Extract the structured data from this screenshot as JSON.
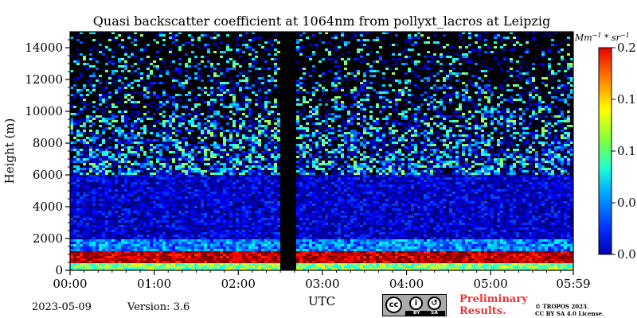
{
  "chart_data": {
    "type": "heatmap",
    "title": "Quasi backscatter coefficient at 1064nm from pollyxt_lacros at Leipzig",
    "xlabel": "UTC",
    "ylabel": "Height (m)",
    "x_ticks": [
      "00:00",
      "01:00",
      "02:00",
      "03:00",
      "04:00",
      "05:00",
      "05:59"
    ],
    "x_range_hours": [
      0,
      5.983
    ],
    "y_ticks": [
      0,
      2000,
      4000,
      6000,
      8000,
      10000,
      12000,
      14000
    ],
    "y_range": [
      0,
      15000
    ],
    "no_data_interval_hours": [
      2.5,
      2.67
    ],
    "colorbar": {
      "unit_label": "Mm^{-1} * sr^{-1}",
      "range": [
        0.0,
        0.2
      ],
      "tick_labels": [
        "0.0",
        "0.0",
        "0.1",
        "0.1",
        "0.2"
      ],
      "tick_values": [
        0.0,
        0.05,
        0.1,
        0.15,
        0.2
      ],
      "colormap": "jet"
    },
    "layers": [
      {
        "height_range": [
          0,
          400
        ],
        "level": 0.1
      },
      {
        "height_range": [
          400,
          1200
        ],
        "level": 0.19
      },
      {
        "height_range": [
          1200,
          2000
        ],
        "level": 0.05
      },
      {
        "height_range": [
          2000,
          6000
        ],
        "level": 0.015
      },
      {
        "height_range": [
          6000,
          15000
        ],
        "level": 0.04
      }
    ]
  },
  "footer": {
    "date": "2023-05-09",
    "version": "Version: 3.6",
    "preliminary": [
      "Preliminary",
      "Results."
    ],
    "copyright": [
      "© TROPOS 2023.",
      "CC BY SA 4.0 License."
    ],
    "license_badge": {
      "cc": "cc",
      "by": "BY",
      "sa": "SA"
    }
  },
  "colors": {
    "no_data": "#000000",
    "frame": "#000000"
  }
}
